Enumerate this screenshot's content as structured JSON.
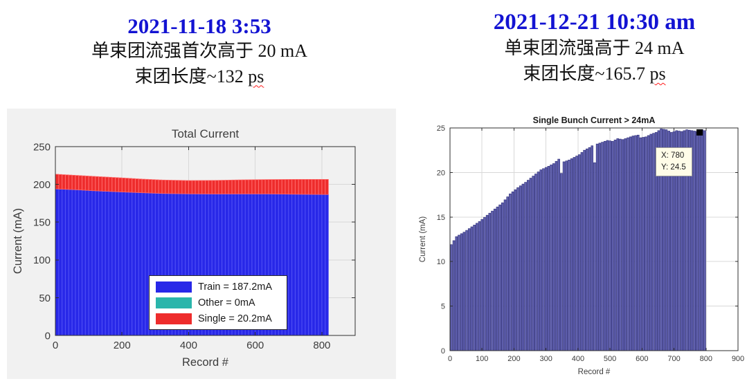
{
  "left_panel": {
    "date_title": "2021-11-18 3:53",
    "caption_line1": "单束团流强首次高于 20 mA",
    "caption_line2_prefix": "束团长度~132 ",
    "caption_line2_suffix": "ps"
  },
  "right_panel": {
    "date_title": "2021-12-21 10:30 am",
    "caption_line1": "单束团流强高于 24 mA",
    "caption_line2_prefix": "束团长度~165.7 ",
    "caption_line2_suffix": "ps"
  },
  "colors": {
    "date_blue": "#1313d2",
    "caption_text": "#121212",
    "squiggle_red": "#ff1a1a",
    "figure_bg_left": "#f1f1f1",
    "axis_color": "#2e2e2e",
    "grid_color": "#d8d8d8",
    "tick_label": "#3c3c3c"
  },
  "chart_data": [
    {
      "type": "bar",
      "stacked": true,
      "title": "Total Current",
      "title_color": "#3f3f3f",
      "title_bold": false,
      "xlabel": "Record #",
      "ylabel": "Current (mA)",
      "xlim": [
        0,
        900
      ],
      "ylim": [
        0,
        250
      ],
      "xticks": [
        0,
        200,
        400,
        600,
        800
      ],
      "yticks": [
        0,
        50,
        100,
        150,
        200,
        250
      ],
      "grid": true,
      "bars": {
        "start": 5,
        "end": 815,
        "step": 10,
        "width_frac": 0.94
      },
      "series": [
        {
          "name": "Train",
          "legend_label": "Train = 187.2mA",
          "value_mA": 187.2,
          "color": "#2828e8",
          "edge": "#5050f5",
          "profile": [
            [
              0,
              194
            ],
            [
              60,
              193
            ],
            [
              120,
              191.5
            ],
            [
              200,
              190
            ],
            [
              260,
              189
            ],
            [
              320,
              188
            ],
            [
              400,
              187.5
            ],
            [
              480,
              187.3
            ],
            [
              560,
              187.4
            ],
            [
              640,
              187.4
            ],
            [
              720,
              187
            ],
            [
              820,
              186.6
            ]
          ]
        },
        {
          "name": "Other",
          "legend_label": "Other = 0mA",
          "value_mA": 0,
          "color": "#2ab5ab",
          "edge": "#2ab5ab",
          "profile": [
            [
              0,
              0
            ],
            [
              820,
              0
            ]
          ]
        },
        {
          "name": "Single",
          "legend_label": "Single = 20.2mA",
          "value_mA": 20.2,
          "color": "#ee2c2c",
          "edge": "#ff6a6a",
          "profile": [
            [
              0,
              19.5
            ],
            [
              60,
              19
            ],
            [
              120,
              19
            ],
            [
              200,
              18.6
            ],
            [
              260,
              18
            ],
            [
              320,
              17.8
            ],
            [
              400,
              17.6
            ],
            [
              480,
              18
            ],
            [
              560,
              18.6
            ],
            [
              640,
              19
            ],
            [
              720,
              19.6
            ],
            [
              820,
              20
            ]
          ]
        }
      ]
    },
    {
      "type": "bar",
      "stacked": false,
      "title": "Single Bunch Current > 24mA",
      "title_color": "#1a1a1a",
      "title_bold": true,
      "xlabel": "Record #",
      "ylabel": "Current (mA)",
      "xlim": [
        0,
        900
      ],
      "ylim": [
        0,
        25
      ],
      "xticks": [
        0,
        100,
        200,
        300,
        400,
        500,
        600,
        700,
        800,
        900
      ],
      "yticks": [
        0,
        5,
        10,
        15,
        20,
        25
      ],
      "grid": true,
      "bars": {
        "start": 4,
        "end": 796,
        "step": 8,
        "width_frac": 0.78
      },
      "color": "#6060ae",
      "edge": "#34347e",
      "profile": [
        [
          4,
          11.9
        ],
        [
          20,
          12.8
        ],
        [
          44,
          13.3
        ],
        [
          68,
          13.9
        ],
        [
          92,
          14.5
        ],
        [
          116,
          15.2
        ],
        [
          140,
          15.9
        ],
        [
          164,
          16.6
        ],
        [
          188,
          17.6
        ],
        [
          212,
          18.3
        ],
        [
          236,
          18.9
        ],
        [
          260,
          19.6
        ],
        [
          284,
          20.3
        ],
        [
          308,
          20.7
        ],
        [
          324,
          21.0
        ],
        [
          340,
          21.5
        ],
        [
          348,
          19.9
        ],
        [
          356,
          21.2
        ],
        [
          372,
          21.4
        ],
        [
          388,
          21.7
        ],
        [
          404,
          22.0
        ],
        [
          420,
          22.5
        ],
        [
          436,
          22.8
        ],
        [
          444,
          23.0
        ],
        [
          452,
          21.1
        ],
        [
          460,
          23.2
        ],
        [
          476,
          23.4
        ],
        [
          492,
          23.6
        ],
        [
          508,
          23.5
        ],
        [
          524,
          23.8
        ],
        [
          540,
          23.7
        ],
        [
          556,
          23.9
        ],
        [
          572,
          24.1
        ],
        [
          588,
          24.2
        ],
        [
          596,
          23.9
        ],
        [
          612,
          24.0
        ],
        [
          628,
          24.3
        ],
        [
          644,
          24.5
        ],
        [
          660,
          24.9
        ],
        [
          676,
          24.8
        ],
        [
          692,
          24.5
        ],
        [
          708,
          24.7
        ],
        [
          724,
          24.6
        ],
        [
          740,
          24.8
        ],
        [
          756,
          24.7
        ],
        [
          772,
          24.6
        ],
        [
          780,
          24.5
        ],
        [
          788,
          24.8
        ],
        [
          796,
          24.7
        ]
      ],
      "datatip": {
        "x": 780,
        "y": 24.5,
        "label_x": "X: 780",
        "label_y": "Y: 24.5",
        "bg": "#fffce8",
        "border": "#9c9c9c",
        "marker_color": "#000000"
      }
    }
  ]
}
